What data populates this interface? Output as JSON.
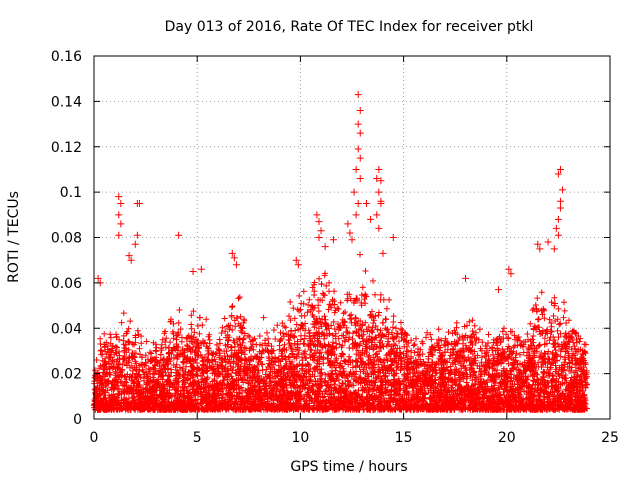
{
  "chart_data": {
    "type": "scatter",
    "title": "Day 013 of 2016, Rate Of TEC Index for receiver ptkl",
    "xlabel": "GPS time / hours",
    "ylabel": "ROTI / TECUs",
    "xlim": [
      0,
      25
    ],
    "ylim": [
      0,
      0.16
    ],
    "x_ticks": [
      0,
      5,
      10,
      15,
      20,
      25
    ],
    "x_tick_labels": [
      "0",
      "5",
      "10",
      "15",
      "20",
      "25"
    ],
    "y_ticks": [
      0,
      0.02,
      0.04,
      0.06,
      0.08,
      0.1,
      0.12,
      0.14,
      0.16
    ],
    "y_tick_labels": [
      "0",
      "0.02",
      "0.04",
      "0.06",
      "0.08",
      "0.1",
      "0.12",
      "0.14",
      "0.16"
    ],
    "grid": true,
    "marker": "plus",
    "color": "#ff0000",
    "background_density": {
      "description": "Dense band of points spanning 0 to 24 hours",
      "x_range": [
        0,
        23.9
      ],
      "y_floor": 0.004,
      "envelope": [
        [
          0,
          0.035
        ],
        [
          0.5,
          0.04
        ],
        [
          1,
          0.045
        ],
        [
          1.5,
          0.05
        ],
        [
          2,
          0.045
        ],
        [
          2.5,
          0.035
        ],
        [
          3,
          0.04
        ],
        [
          3.5,
          0.045
        ],
        [
          4,
          0.05
        ],
        [
          4.5,
          0.045
        ],
        [
          5,
          0.05
        ],
        [
          5.5,
          0.045
        ],
        [
          6,
          0.04
        ],
        [
          6.5,
          0.055
        ],
        [
          7,
          0.06
        ],
        [
          7.5,
          0.04
        ],
        [
          8,
          0.045
        ],
        [
          8.5,
          0.05
        ],
        [
          9,
          0.045
        ],
        [
          9.5,
          0.055
        ],
        [
          10,
          0.06
        ],
        [
          10.5,
          0.065
        ],
        [
          11,
          0.075
        ],
        [
          11.5,
          0.06
        ],
        [
          12,
          0.065
        ],
        [
          12.5,
          0.07
        ],
        [
          13,
          0.075
        ],
        [
          13.5,
          0.065
        ],
        [
          14,
          0.06
        ],
        [
          14.5,
          0.055
        ],
        [
          15,
          0.045
        ],
        [
          15.5,
          0.04
        ],
        [
          16,
          0.04
        ],
        [
          16.5,
          0.045
        ],
        [
          17,
          0.04
        ],
        [
          17.5,
          0.045
        ],
        [
          18,
          0.05
        ],
        [
          18.5,
          0.045
        ],
        [
          19,
          0.04
        ],
        [
          19.5,
          0.045
        ],
        [
          20,
          0.045
        ],
        [
          20.5,
          0.04
        ],
        [
          21,
          0.045
        ],
        [
          21.5,
          0.06
        ],
        [
          22,
          0.055
        ],
        [
          22.5,
          0.06
        ],
        [
          23,
          0.05
        ],
        [
          23.5,
          0.045
        ],
        [
          23.9,
          0.035
        ]
      ]
    },
    "notable_points": [
      {
        "x": 12.8,
        "y": 0.143
      },
      {
        "x": 12.9,
        "y": 0.136
      },
      {
        "x": 12.8,
        "y": 0.13
      },
      {
        "x": 12.9,
        "y": 0.126
      },
      {
        "x": 12.8,
        "y": 0.119
      },
      {
        "x": 12.9,
        "y": 0.115
      },
      {
        "x": 12.7,
        "y": 0.11
      },
      {
        "x": 12.9,
        "y": 0.106
      },
      {
        "x": 12.6,
        "y": 0.1
      },
      {
        "x": 12.8,
        "y": 0.095
      },
      {
        "x": 12.7,
        "y": 0.09
      },
      {
        "x": 13.8,
        "y": 0.11
      },
      {
        "x": 13.7,
        "y": 0.106
      },
      {
        "x": 13.8,
        "y": 0.1
      },
      {
        "x": 13.9,
        "y": 0.096
      },
      {
        "x": 13.7,
        "y": 0.09
      },
      {
        "x": 13.8,
        "y": 0.084
      },
      {
        "x": 14.5,
        "y": 0.08
      },
      {
        "x": 22.6,
        "y": 0.11
      },
      {
        "x": 22.5,
        "y": 0.108
      },
      {
        "x": 22.7,
        "y": 0.101
      },
      {
        "x": 22.6,
        "y": 0.096
      },
      {
        "x": 22.6,
        "y": 0.093
      },
      {
        "x": 22.5,
        "y": 0.088
      },
      {
        "x": 22.4,
        "y": 0.084
      },
      {
        "x": 22.5,
        "y": 0.081
      },
      {
        "x": 22.3,
        "y": 0.075
      },
      {
        "x": 1.2,
        "y": 0.098
      },
      {
        "x": 1.3,
        "y": 0.095
      },
      {
        "x": 1.2,
        "y": 0.09
      },
      {
        "x": 1.3,
        "y": 0.086
      },
      {
        "x": 1.2,
        "y": 0.081
      },
      {
        "x": 2.1,
        "y": 0.095
      },
      {
        "x": 2.2,
        "y": 0.095
      },
      {
        "x": 2.1,
        "y": 0.081
      },
      {
        "x": 2.0,
        "y": 0.077
      },
      {
        "x": 4.1,
        "y": 0.081
      },
      {
        "x": 10.8,
        "y": 0.09
      },
      {
        "x": 10.9,
        "y": 0.087
      },
      {
        "x": 11.0,
        "y": 0.083
      },
      {
        "x": 10.9,
        "y": 0.08
      },
      {
        "x": 11.2,
        "y": 0.076
      },
      {
        "x": 12.3,
        "y": 0.086
      },
      {
        "x": 12.4,
        "y": 0.082
      },
      {
        "x": 12.5,
        "y": 0.079
      },
      {
        "x": 13.2,
        "y": 0.095
      },
      {
        "x": 13.4,
        "y": 0.088
      },
      {
        "x": 13.9,
        "y": 0.105
      },
      {
        "x": 13.9,
        "y": 0.095
      },
      {
        "x": 21.5,
        "y": 0.077
      },
      {
        "x": 21.6,
        "y": 0.075
      },
      {
        "x": 22.0,
        "y": 0.078
      },
      {
        "x": 20.1,
        "y": 0.066
      },
      {
        "x": 20.2,
        "y": 0.064
      },
      {
        "x": 6.7,
        "y": 0.073
      },
      {
        "x": 6.8,
        "y": 0.071
      },
      {
        "x": 6.9,
        "y": 0.068
      },
      {
        "x": 9.8,
        "y": 0.07
      },
      {
        "x": 9.9,
        "y": 0.068
      },
      {
        "x": 0.2,
        "y": 0.062
      },
      {
        "x": 0.3,
        "y": 0.06
      },
      {
        "x": 1.7,
        "y": 0.072
      },
      {
        "x": 1.8,
        "y": 0.07
      },
      {
        "x": 5.2,
        "y": 0.066
      },
      {
        "x": 4.8,
        "y": 0.065
      },
      {
        "x": 18.0,
        "y": 0.062
      },
      {
        "x": 19.6,
        "y": 0.057
      },
      {
        "x": 11.6,
        "y": 0.079
      },
      {
        "x": 14.0,
        "y": 0.073
      }
    ]
  }
}
